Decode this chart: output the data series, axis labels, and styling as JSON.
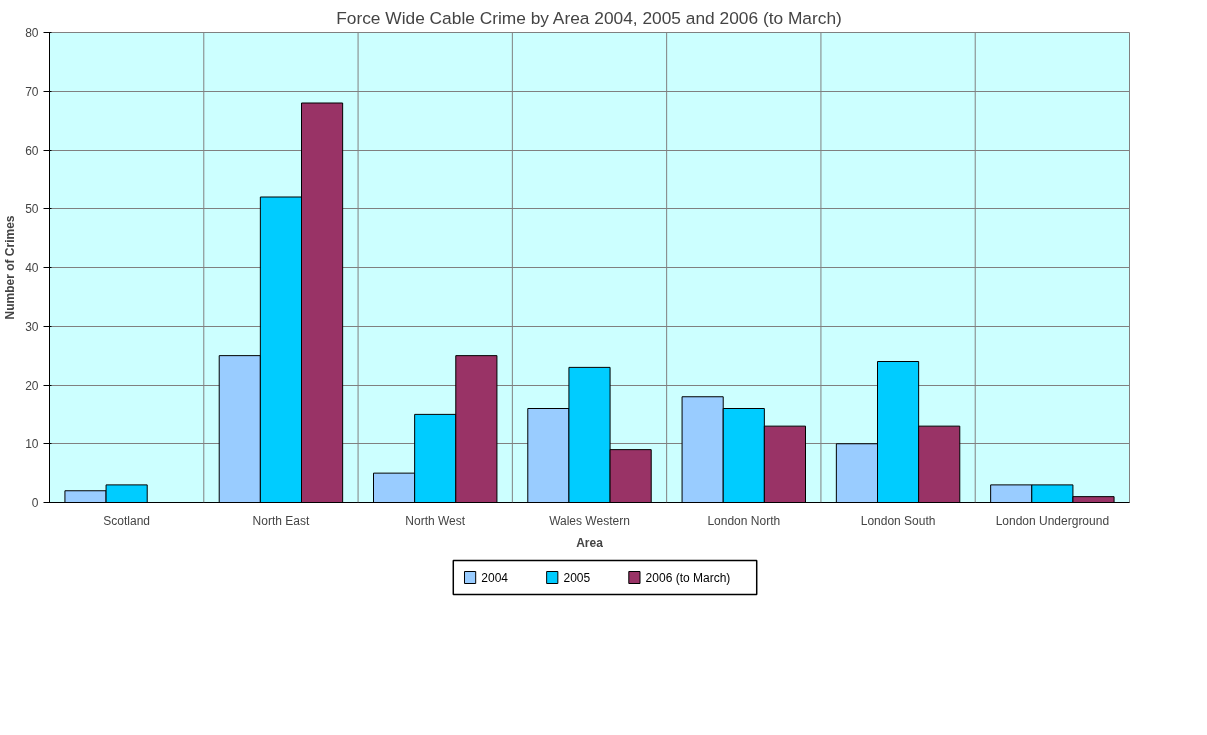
{
  "chart_data": {
    "type": "bar",
    "title": "Force Wide Cable Crime by Area 2004, 2005 and 2006 (to March)",
    "xlabel": "Area",
    "ylabel": "Number of Crimes",
    "categories": [
      "Scotland",
      "North East",
      "North West",
      "Wales Western",
      "London North",
      "London South",
      "London Underground"
    ],
    "series": [
      {
        "name": "2004",
        "color": "#99ccff",
        "values": [
          2,
          25,
          5,
          16,
          18,
          10,
          3
        ]
      },
      {
        "name": "2005",
        "color": "#00ccff",
        "values": [
          3,
          52,
          15,
          23,
          16,
          24,
          3
        ]
      },
      {
        "name": "2006 (to March)",
        "color": "#993366",
        "values": [
          null,
          68,
          25,
          9,
          13,
          13,
          1
        ]
      }
    ],
    "ylim": [
      0,
      80
    ],
    "yticks": [
      0,
      10,
      20,
      30,
      40,
      50,
      60,
      70,
      80
    ],
    "grid": true,
    "legend": "bottom"
  }
}
